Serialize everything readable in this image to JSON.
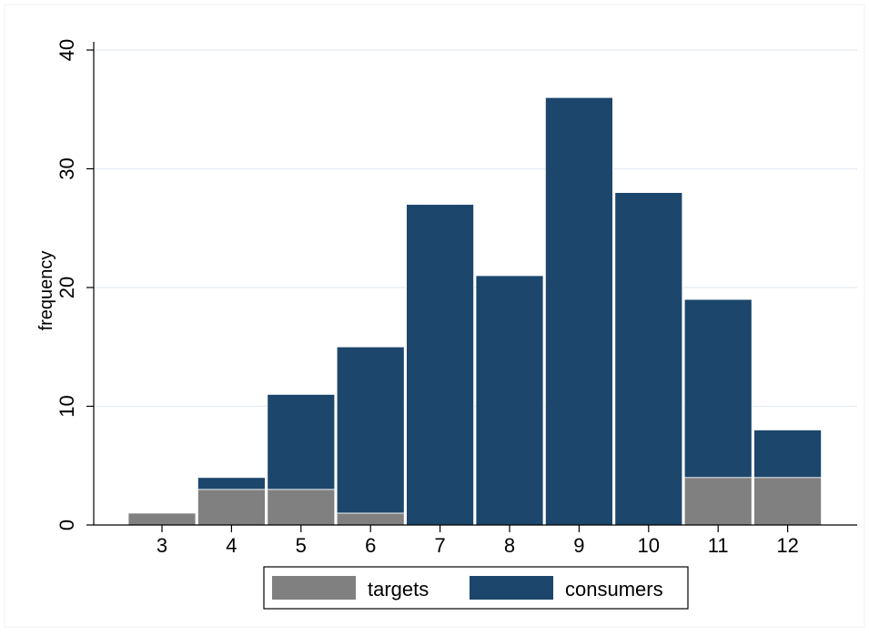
{
  "chart_data": {
    "type": "bar",
    "stacked": true,
    "ylabel": "frequency",
    "xlabel": "",
    "title": "",
    "categories": [
      "3",
      "4",
      "5",
      "6",
      "7",
      "8",
      "9",
      "10",
      "11",
      "12"
    ],
    "series": [
      {
        "name": "targets",
        "color": "#808080",
        "values": [
          1,
          3,
          3,
          1,
          0,
          0,
          0,
          0,
          4,
          4
        ]
      },
      {
        "name": "consumers",
        "color": "#1c466c",
        "values": [
          0,
          1,
          8,
          14,
          27,
          21,
          36,
          28,
          15,
          4
        ]
      }
    ],
    "ylim": [
      0,
      40
    ],
    "yticks": [
      "0",
      "10",
      "20",
      "30",
      "40"
    ],
    "grid": true,
    "legend": {
      "position": "bottom-center"
    }
  }
}
